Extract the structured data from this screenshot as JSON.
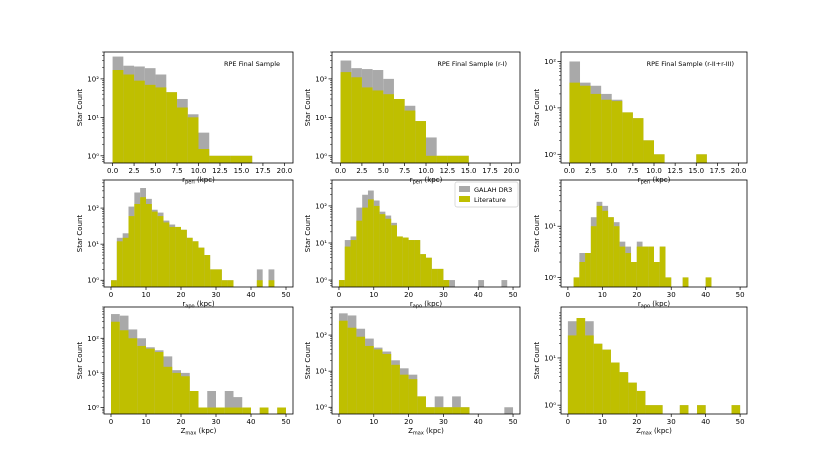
{
  "colors": {
    "galah": "#a9a9a9",
    "literature": "#bfbf00",
    "axis": "#000000"
  },
  "legend": {
    "entries": [
      {
        "label": "GALAH DR3",
        "color": "#a9a9a9"
      },
      {
        "label": "Literature",
        "color": "#bfbf00"
      }
    ]
  },
  "chart_data": [
    {
      "panel": "r_peri-all",
      "type": "bar",
      "title": "RPE Final Sample",
      "xlabel": "r_peri (kpc)",
      "xlabel_main": "r",
      "xlabel_sub": "peri",
      "xlabel_unit": " (kpc)",
      "ylabel": "Star Count",
      "log_y": true,
      "xlim": [
        -1,
        21
      ],
      "ylim": [
        0.65,
        500
      ],
      "xticks": [
        0,
        2.5,
        5,
        7.5,
        10,
        12.5,
        15,
        17.5,
        20
      ],
      "xtick_labels": [
        "0.0",
        "2.5",
        "5.0",
        "7.5",
        "10.0",
        "12.5",
        "15.0",
        "17.5",
        "20.0"
      ],
      "yticks": [
        1,
        10,
        100
      ],
      "ytick_labels": [
        "10⁰",
        "10¹",
        "10²"
      ],
      "bin_edges": [
        0,
        1.25,
        2.5,
        3.75,
        5,
        6.25,
        7.5,
        8.75,
        10,
        11.25,
        12.5,
        13.75,
        15,
        16.25
      ],
      "series": [
        {
          "name": "GALAH DR3",
          "values": [
            380,
            220,
            210,
            190,
            130,
            45,
            30,
            12,
            4,
            1,
            1,
            1,
            1
          ]
        },
        {
          "name": "Literature",
          "values": [
            170,
            130,
            90,
            70,
            60,
            45,
            18,
            10,
            1.5,
            1,
            1,
            1,
            1
          ]
        }
      ]
    },
    {
      "panel": "r_peri-rI",
      "type": "bar",
      "title": "RPE Final Sample (r-I)",
      "xlabel": "r_peri (kpc)",
      "xlabel_main": "r",
      "xlabel_sub": "peri",
      "xlabel_unit": " (kpc)",
      "ylabel": "Star Count",
      "log_y": true,
      "xlim": [
        -1,
        21
      ],
      "ylim": [
        0.65,
        500
      ],
      "xticks": [
        0,
        2.5,
        5,
        7.5,
        10,
        12.5,
        15,
        17.5,
        20
      ],
      "xtick_labels": [
        "0.0",
        "2.5",
        "5.0",
        "7.5",
        "10.0",
        "12.5",
        "15.0",
        "17.5",
        "20.0"
      ],
      "yticks": [
        1,
        10,
        100
      ],
      "ytick_labels": [
        "10⁰",
        "10¹",
        "10²"
      ],
      "bin_edges": [
        0,
        1.25,
        2.5,
        3.75,
        5,
        6.25,
        7.5,
        8.75,
        10,
        11.25,
        12.5,
        13.75,
        15
      ],
      "series": [
        {
          "name": "GALAH DR3",
          "values": [
            300,
            190,
            180,
            170,
            100,
            30,
            20,
            8,
            3,
            1,
            1,
            1
          ]
        },
        {
          "name": "Literature",
          "values": [
            150,
            110,
            60,
            50,
            40,
            30,
            15,
            8,
            1,
            1,
            1,
            1
          ]
        }
      ]
    },
    {
      "panel": "r_peri-rII",
      "type": "bar",
      "title": "RPE Final Sample (r-II+r-III)",
      "xlabel": "r_peri (kpc)",
      "xlabel_main": "r",
      "xlabel_sub": "peri",
      "xlabel_unit": " (kpc)",
      "ylabel": "Star Count",
      "log_y": true,
      "xlim": [
        -1,
        21
      ],
      "ylim": [
        0.65,
        160
      ],
      "xticks": [
        0,
        2.5,
        5,
        7.5,
        10,
        12.5,
        15,
        17.5,
        20
      ],
      "xtick_labels": [
        "0.0",
        "2.5",
        "5.0",
        "7.5",
        "10.0",
        "12.5",
        "15.0",
        "17.5",
        "20.0"
      ],
      "yticks": [
        1,
        10,
        100
      ],
      "ytick_labels": [
        "10⁰",
        "10¹",
        "10²"
      ],
      "bin_edges": [
        0,
        1.25,
        2.5,
        3.75,
        5,
        6.25,
        7.5,
        8.75,
        10,
        11.25,
        12.5,
        13.75,
        15,
        16.25
      ],
      "series": [
        {
          "name": "GALAH DR3",
          "values": [
            100,
            35,
            30,
            20,
            15,
            8,
            6,
            2,
            1,
            0,
            0,
            0,
            1
          ]
        },
        {
          "name": "Literature",
          "values": [
            35,
            30,
            20,
            15,
            14,
            8,
            6,
            2,
            1,
            0,
            0,
            0,
            1
          ]
        }
      ]
    },
    {
      "panel": "r_apo-all",
      "type": "bar",
      "title": "",
      "xlabel": "r_apo (kpc)",
      "xlabel_main": "r",
      "xlabel_sub": "apo",
      "xlabel_unit": " (kpc)",
      "ylabel": "Star Count",
      "log_y": true,
      "xlim": [
        -2,
        52
      ],
      "ylim": [
        0.65,
        600
      ],
      "xticks": [
        0,
        10,
        20,
        30,
        40,
        50
      ],
      "xtick_labels": [
        "0",
        "10",
        "20",
        "30",
        "40",
        "50"
      ],
      "yticks": [
        1,
        10,
        100
      ],
      "ytick_labels": [
        "10⁰",
        "10¹",
        "10²"
      ],
      "bin_edges": [
        0,
        1.67,
        3.33,
        5,
        6.67,
        8.33,
        10,
        11.67,
        13.33,
        15,
        16.67,
        18.33,
        20,
        21.67,
        23.33,
        25,
        26.67,
        28.33,
        30,
        31.67,
        33.33,
        35,
        36.67,
        38.33,
        40,
        41.67,
        43.33,
        45,
        46.67,
        48.33,
        50
      ],
      "series": [
        {
          "name": "GALAH DR3",
          "values": [
            1,
            15,
            20,
            110,
            270,
            360,
            180,
            90,
            75,
            45,
            35,
            30,
            25,
            15,
            12,
            8,
            5,
            2,
            2,
            1,
            1,
            0,
            0,
            0,
            0,
            2,
            0,
            2,
            0,
            0
          ]
        },
        {
          "name": "Literature",
          "values": [
            1,
            12,
            15,
            60,
            130,
            200,
            130,
            80,
            60,
            40,
            30,
            30,
            25,
            15,
            12,
            8,
            5,
            2,
            2,
            1,
            1,
            0,
            0,
            0,
            0,
            1,
            0,
            1,
            0,
            0
          ]
        }
      ]
    },
    {
      "panel": "r_apo-rI",
      "type": "bar",
      "title": "",
      "xlabel": "r_apo (kpc)",
      "xlabel_main": "r",
      "xlabel_sub": "apo",
      "xlabel_unit": " (kpc)",
      "ylabel": "Star Count",
      "log_y": true,
      "xlim": [
        -2,
        52
      ],
      "ylim": [
        0.65,
        500
      ],
      "xticks": [
        0,
        10,
        20,
        30,
        40,
        50
      ],
      "xtick_labels": [
        "0",
        "10",
        "20",
        "30",
        "40",
        "50"
      ],
      "yticks": [
        1,
        10,
        100
      ],
      "ytick_labels": [
        "10⁰",
        "10¹",
        "10²"
      ],
      "bin_edges": [
        0,
        1.67,
        3.33,
        5,
        6.67,
        8.33,
        10,
        11.67,
        13.33,
        15,
        16.67,
        18.33,
        20,
        21.67,
        23.33,
        25,
        26.67,
        28.33,
        30,
        31.67,
        33.33,
        35,
        36.67,
        38.33,
        40,
        41.67,
        43.33,
        45,
        46.67,
        48.33,
        50
      ],
      "series": [
        {
          "name": "GALAH DR3",
          "values": [
            1,
            12,
            15,
            90,
            200,
            260,
            140,
            70,
            55,
            35,
            15,
            14,
            12,
            12,
            5,
            4,
            2,
            2,
            1,
            1,
            0,
            0,
            0,
            0,
            1,
            0,
            0,
            0,
            1,
            0
          ]
        },
        {
          "name": "Literature",
          "values": [
            1,
            8,
            12,
            40,
            90,
            150,
            100,
            60,
            45,
            30,
            15,
            14,
            12,
            12,
            5,
            4,
            2,
            2,
            1,
            0,
            0,
            0,
            0,
            0,
            0,
            0,
            0,
            0,
            0,
            0
          ]
        }
      ]
    },
    {
      "panel": "r_apo-rII",
      "type": "bar",
      "title": "",
      "xlabel": "r_apo (kpc)",
      "xlabel_main": "r",
      "xlabel_sub": "apo",
      "xlabel_unit": " (kpc)",
      "ylabel": "Star Count",
      "log_y": true,
      "xlim": [
        -2,
        52
      ],
      "ylim": [
        0.65,
        80
      ],
      "xticks": [
        0,
        10,
        20,
        30,
        40,
        50
      ],
      "xtick_labels": [
        "0",
        "10",
        "20",
        "30",
        "40",
        "50"
      ],
      "yticks": [
        1,
        10
      ],
      "ytick_labels": [
        "10⁰",
        "10¹"
      ],
      "bin_edges": [
        0,
        1.67,
        3.33,
        5,
        6.67,
        8.33,
        10,
        11.67,
        13.33,
        15,
        16.67,
        18.33,
        20,
        21.67,
        23.33,
        25,
        26.67,
        28.33,
        30,
        31.67,
        33.33,
        35,
        36.67,
        38.33,
        40,
        41.67,
        43.33,
        45,
        46.67,
        48.33,
        50
      ],
      "series": [
        {
          "name": "GALAH DR3",
          "values": [
            0,
            1,
            3,
            3,
            15,
            30,
            25,
            15,
            12,
            5,
            4,
            2,
            5,
            4,
            4,
            2,
            4,
            1,
            0,
            0,
            1,
            0,
            0,
            0,
            1,
            0,
            0,
            0,
            0,
            0
          ]
        },
        {
          "name": "Literature",
          "values": [
            0,
            1,
            2,
            3,
            10,
            25,
            20,
            15,
            10,
            4,
            3,
            2,
            4,
            4,
            4,
            2,
            4,
            1,
            0,
            0,
            1,
            0,
            0,
            0,
            1,
            0,
            0,
            0,
            0,
            0
          ]
        }
      ]
    },
    {
      "panel": "z_max-all",
      "type": "bar",
      "title": "",
      "xlabel": "Z_max (kpc)",
      "xlabel_main": "Z",
      "xlabel_sub": "max",
      "xlabel_unit": " (kpc)",
      "ylabel": "Star Count",
      "log_y": true,
      "xlim": [
        -2,
        52
      ],
      "ylim": [
        0.65,
        800
      ],
      "xticks": [
        0,
        10,
        20,
        30,
        40,
        50
      ],
      "xtick_labels": [
        "0",
        "10",
        "20",
        "30",
        "40",
        "50"
      ],
      "yticks": [
        1,
        10,
        100
      ],
      "ytick_labels": [
        "10⁰",
        "10¹",
        "10²"
      ],
      "bin_edges": [
        0,
        2.5,
        5,
        7.5,
        10,
        12.5,
        15,
        17.5,
        20,
        22.5,
        25,
        27.5,
        30,
        32.5,
        35,
        37.5,
        40,
        42.5,
        45,
        47.5,
        50
      ],
      "series": [
        {
          "name": "GALAH DR3",
          "values": [
            500,
            450,
            180,
            100,
            55,
            45,
            30,
            12,
            10,
            3,
            1,
            3,
            1,
            3,
            2,
            1,
            0,
            1,
            0,
            1
          ]
        },
        {
          "name": "Literature",
          "values": [
            300,
            170,
            100,
            60,
            50,
            40,
            15,
            10,
            8,
            3,
            1,
            1,
            1,
            1,
            1,
            1,
            0,
            1,
            0,
            1
          ]
        }
      ]
    },
    {
      "panel": "z_max-rI",
      "type": "bar",
      "title": "",
      "xlabel": "Z_max (kpc)",
      "xlabel_main": "Z",
      "xlabel_sub": "max",
      "xlabel_unit": " (kpc)",
      "ylabel": "Star Count",
      "log_y": true,
      "xlim": [
        -2,
        52
      ],
      "ylim": [
        0.65,
        600
      ],
      "xticks": [
        0,
        10,
        20,
        30,
        40,
        50
      ],
      "xtick_labels": [
        "0",
        "10",
        "20",
        "30",
        "40",
        "50"
      ],
      "yticks": [
        1,
        10,
        100
      ],
      "ytick_labels": [
        "10⁰",
        "10¹",
        "10²"
      ],
      "bin_edges": [
        0,
        2.5,
        5,
        7.5,
        10,
        12.5,
        15,
        17.5,
        20,
        22.5,
        25,
        27.5,
        30,
        32.5,
        35,
        37.5,
        40,
        42.5,
        45,
        47.5,
        50
      ],
      "series": [
        {
          "name": "GALAH DR3",
          "values": [
            400,
            350,
            150,
            80,
            45,
            35,
            20,
            12,
            8,
            2,
            1,
            2,
            1,
            2,
            1,
            0,
            0,
            0,
            0,
            1
          ]
        },
        {
          "name": "Literature",
          "values": [
            250,
            160,
            90,
            50,
            40,
            30,
            15,
            8,
            6,
            2,
            1,
            1,
            1,
            1,
            1,
            0,
            0,
            0,
            0,
            0
          ]
        }
      ]
    },
    {
      "panel": "z_max-rII",
      "type": "bar",
      "title": "",
      "xlabel": "Z_max (kpc)",
      "xlabel_main": "Z",
      "xlabel_sub": "max",
      "xlabel_unit": " (kpc)",
      "ylabel": "Star Count",
      "log_y": true,
      "xlim": [
        -2,
        52
      ],
      "ylim": [
        0.65,
        120
      ],
      "xticks": [
        0,
        10,
        20,
        30,
        40,
        50
      ],
      "xtick_labels": [
        "0",
        "10",
        "20",
        "30",
        "40",
        "50"
      ],
      "yticks": [
        1,
        10
      ],
      "ytick_labels": [
        "10⁰",
        "10¹"
      ],
      "bin_edges": [
        0,
        2.5,
        5,
        7.5,
        10,
        12.5,
        15,
        17.5,
        20,
        22.5,
        25,
        27.5,
        30,
        32.5,
        35,
        37.5,
        40,
        42.5,
        45,
        47.5,
        50
      ],
      "series": [
        {
          "name": "GALAH DR3",
          "values": [
            60,
            70,
            60,
            20,
            15,
            8,
            5,
            3,
            2,
            1,
            1,
            0,
            0,
            1,
            0,
            1,
            0,
            0,
            0,
            1
          ]
        },
        {
          "name": "Literature",
          "values": [
            30,
            70,
            30,
            20,
            15,
            8,
            5,
            3,
            2,
            1,
            1,
            0,
            0,
            1,
            0,
            1,
            0,
            0,
            0,
            1
          ]
        }
      ]
    }
  ]
}
